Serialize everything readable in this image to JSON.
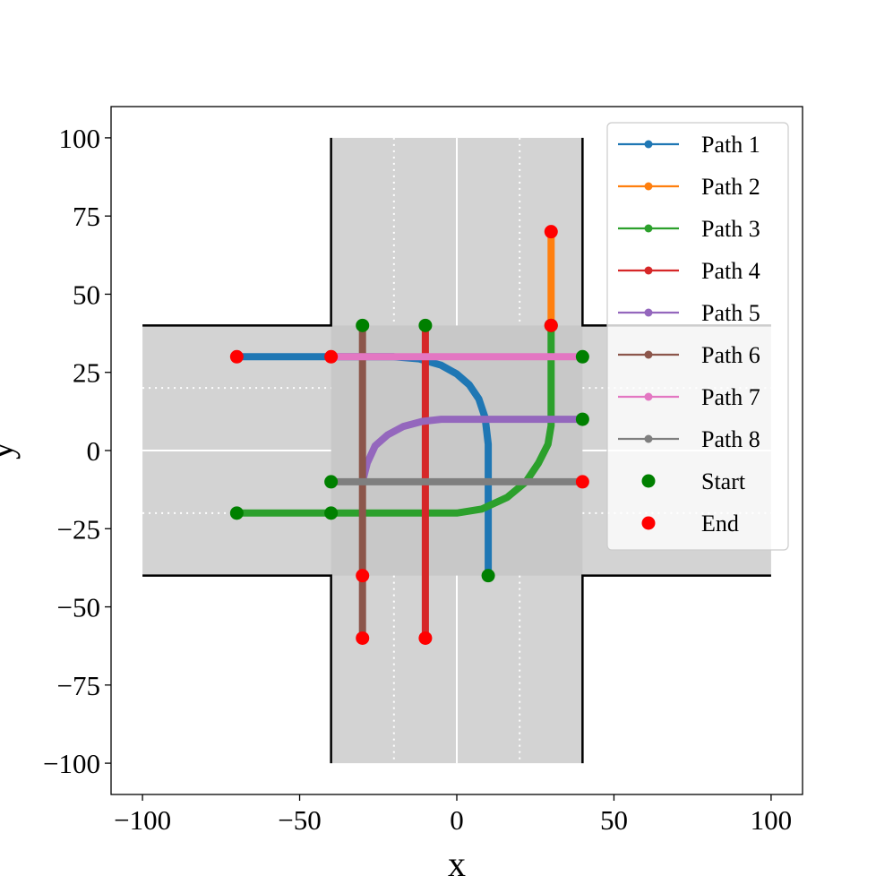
{
  "chart_data": {
    "type": "line",
    "title": "",
    "xlabel": "x",
    "ylabel": "y",
    "xlim": [
      -110,
      110
    ],
    "ylim": [
      -110,
      110
    ],
    "xticks": [
      -100,
      -50,
      0,
      50,
      100
    ],
    "yticks": [
      -100,
      -75,
      -50,
      -25,
      0,
      25,
      50,
      75,
      100
    ],
    "xtick_labels": [
      "−100",
      "−50",
      "0",
      "50",
      "100"
    ],
    "ytick_labels": [
      "−100",
      "−75",
      "−50",
      "−25",
      "0",
      "25",
      "50",
      "75",
      "100"
    ],
    "grid": false,
    "legend_position": "upper right",
    "background": {
      "road_color": "#d3d3d3",
      "junction_color": "#c8c8c8",
      "edge_color": "#000000",
      "center_line_color": "#ffffff",
      "lane_line_color": "#ffffff"
    },
    "series": [
      {
        "name": "Path 1",
        "color": "#1f77b4",
        "x": [
          -70,
          -40,
          -35,
          -28,
          -20,
          -12,
          -5,
          0,
          4,
          7,
          9,
          10,
          10,
          10
        ],
        "y": [
          30,
          30,
          30,
          30,
          30,
          29.3,
          27.3,
          24.5,
          21,
          16.5,
          10.5,
          2,
          0,
          -40
        ]
      },
      {
        "name": "Path 2",
        "color": "#ff7f0e",
        "x": [
          30,
          30
        ],
        "y": [
          40,
          70
        ]
      },
      {
        "name": "Path 3",
        "color": "#2ca02c",
        "x": [
          -70,
          -40,
          0,
          8,
          16,
          22,
          26,
          29,
          30,
          30,
          30
        ],
        "y": [
          -20,
          -20,
          -20,
          -18.7,
          -15,
          -10,
          -4,
          2,
          8,
          30,
          40
        ]
      },
      {
        "name": "Path 4",
        "color": "#d62728",
        "x": [
          -10,
          -10
        ],
        "y": [
          40,
          -60
        ]
      },
      {
        "name": "Path 5",
        "color": "#9467bd",
        "x": [
          -30,
          -28.5,
          -26,
          -22,
          -17,
          -11,
          -5,
          0,
          40
        ],
        "y": [
          -10,
          -4,
          1.5,
          5,
          7.7,
          9.3,
          10,
          10,
          10
        ]
      },
      {
        "name": "Path 6",
        "color": "#8c564b",
        "x": [
          -30,
          -30,
          -30
        ],
        "y": [
          40,
          -40,
          -60
        ]
      },
      {
        "name": "Path 7",
        "color": "#e377c2",
        "x": [
          -40,
          40
        ],
        "y": [
          30,
          30
        ]
      },
      {
        "name": "Path 8",
        "color": "#7f7f7f",
        "x": [
          -40,
          40
        ],
        "y": [
          -10,
          -10
        ]
      }
    ],
    "start_points": [
      {
        "x": -30,
        "y": 40
      },
      {
        "x": -10,
        "y": 40
      },
      {
        "x": 40,
        "y": 30
      },
      {
        "x": 40,
        "y": 10
      },
      {
        "x": -40,
        "y": -10
      },
      {
        "x": -70,
        "y": -20
      },
      {
        "x": -40,
        "y": -20
      },
      {
        "x": 10,
        "y": -40
      },
      {
        "x": 30,
        "y": 40
      }
    ],
    "end_points": [
      {
        "x": -70,
        "y": 30
      },
      {
        "x": -40,
        "y": 30
      },
      {
        "x": 30,
        "y": 70
      },
      {
        "x": 30,
        "y": 40
      },
      {
        "x": 40,
        "y": -10
      },
      {
        "x": -30,
        "y": -40
      },
      {
        "x": -30,
        "y": -60
      },
      {
        "x": -10,
        "y": -60
      }
    ],
    "start_color": "#008000",
    "end_color": "#ff0000",
    "legend": [
      {
        "label": "Path 1",
        "kind": "line",
        "color": "#1f77b4"
      },
      {
        "label": "Path 2",
        "kind": "line",
        "color": "#ff7f0e"
      },
      {
        "label": "Path 3",
        "kind": "line",
        "color": "#2ca02c"
      },
      {
        "label": "Path 4",
        "kind": "line",
        "color": "#d62728"
      },
      {
        "label": "Path 5",
        "kind": "line",
        "color": "#9467bd"
      },
      {
        "label": "Path 6",
        "kind": "line",
        "color": "#8c564b"
      },
      {
        "label": "Path 7",
        "kind": "line",
        "color": "#e377c2"
      },
      {
        "label": "Path 8",
        "kind": "line",
        "color": "#7f7f7f"
      },
      {
        "label": "Start",
        "kind": "marker",
        "color": "#008000"
      },
      {
        "label": "End",
        "kind": "marker",
        "color": "#ff0000"
      }
    ]
  }
}
